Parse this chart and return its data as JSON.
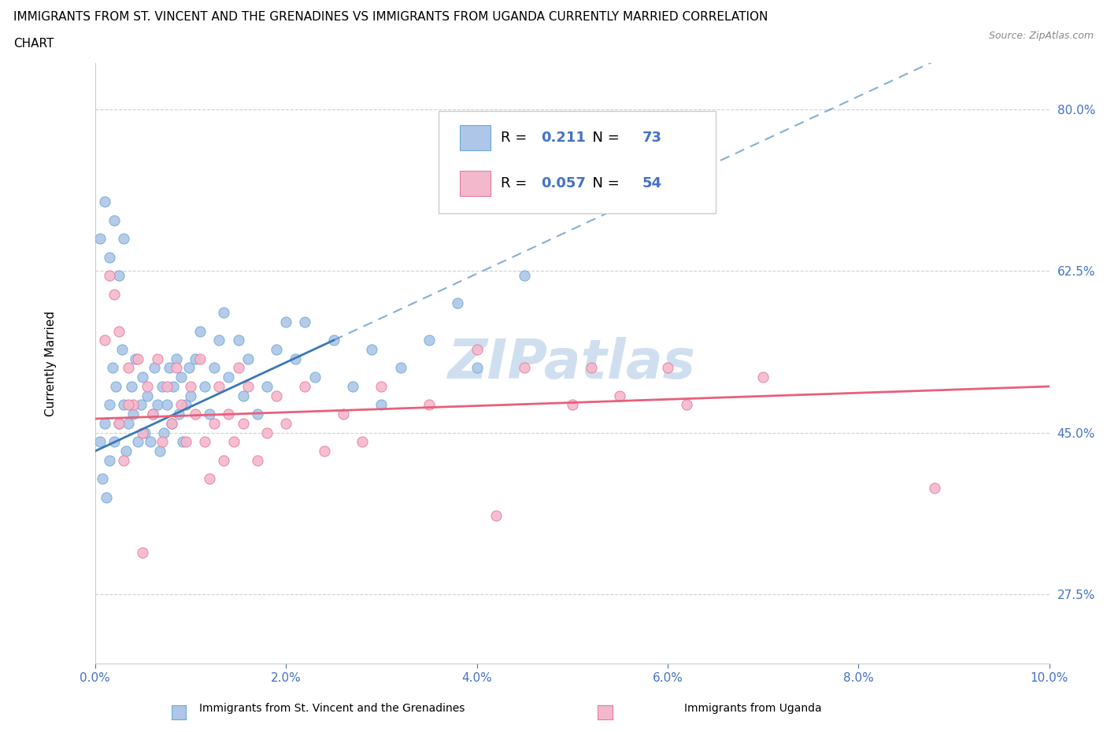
{
  "title_line1": "IMMIGRANTS FROM ST. VINCENT AND THE GRENADINES VS IMMIGRANTS FROM UGANDA CURRENTLY MARRIED CORRELATION",
  "title_line2": "CHART",
  "source": "Source: ZipAtlas.com",
  "xlabel_vals": [
    0.0,
    2.0,
    4.0,
    6.0,
    8.0,
    10.0
  ],
  "ylabel_vals": [
    27.5,
    45.0,
    62.5,
    80.0
  ],
  "ylabel_label": "Currently Married",
  "xlabel_label_blue": "Immigrants from St. Vincent and the Grenadines",
  "xlabel_label_pink": "Immigrants from Uganda",
  "xmin": 0.0,
  "xmax": 10.0,
  "ymin": 20.0,
  "ymax": 85.0,
  "blue_color": "#aec6e8",
  "pink_color": "#f4b8cc",
  "blue_edge_color": "#6aaad4",
  "pink_edge_color": "#e8799a",
  "blue_line_color": "#3a78b5",
  "pink_line_color": "#e8607a",
  "R_blue": 0.211,
  "N_blue": 73,
  "R_pink": 0.057,
  "N_pink": 54,
  "legend_color": "#4472c4",
  "watermark": "ZIPatlas",
  "watermark_color": "#d0dff0",
  "blue_solid_x_end": 2.5,
  "blue_line_y0": 43.0,
  "blue_line_slope": 4.8,
  "pink_line_y0": 46.5,
  "pink_line_slope": 0.35,
  "blue_scatter_x": [
    0.05,
    0.08,
    0.1,
    0.12,
    0.15,
    0.15,
    0.18,
    0.2,
    0.22,
    0.25,
    0.28,
    0.3,
    0.32,
    0.35,
    0.38,
    0.4,
    0.42,
    0.45,
    0.48,
    0.5,
    0.52,
    0.55,
    0.58,
    0.6,
    0.62,
    0.65,
    0.68,
    0.7,
    0.72,
    0.75,
    0.78,
    0.8,
    0.82,
    0.85,
    0.88,
    0.9,
    0.92,
    0.95,
    0.98,
    1.0,
    1.05,
    1.1,
    1.15,
    1.2,
    1.25,
    1.3,
    1.35,
    1.4,
    1.5,
    1.55,
    1.6,
    1.7,
    1.8,
    1.9,
    2.0,
    2.1,
    2.2,
    2.3,
    2.5,
    2.7,
    2.9,
    3.0,
    3.2,
    3.5,
    3.8,
    4.0,
    4.5,
    0.05,
    0.1,
    0.15,
    0.2,
    0.25,
    0.3
  ],
  "blue_scatter_y": [
    44.0,
    40.0,
    46.0,
    38.0,
    42.0,
    48.0,
    52.0,
    44.0,
    50.0,
    46.0,
    54.0,
    48.0,
    43.0,
    46.0,
    50.0,
    47.0,
    53.0,
    44.0,
    48.0,
    51.0,
    45.0,
    49.0,
    44.0,
    47.0,
    52.0,
    48.0,
    43.0,
    50.0,
    45.0,
    48.0,
    52.0,
    46.0,
    50.0,
    53.0,
    47.0,
    51.0,
    44.0,
    48.0,
    52.0,
    49.0,
    53.0,
    56.0,
    50.0,
    47.0,
    52.0,
    55.0,
    58.0,
    51.0,
    55.0,
    49.0,
    53.0,
    47.0,
    50.0,
    54.0,
    57.0,
    53.0,
    57.0,
    51.0,
    55.0,
    50.0,
    54.0,
    48.0,
    52.0,
    55.0,
    59.0,
    52.0,
    62.0,
    66.0,
    70.0,
    64.0,
    68.0,
    62.0,
    66.0
  ],
  "pink_scatter_x": [
    0.1,
    0.2,
    0.25,
    0.3,
    0.35,
    0.4,
    0.45,
    0.5,
    0.55,
    0.6,
    0.65,
    0.7,
    0.75,
    0.8,
    0.85,
    0.9,
    0.95,
    1.0,
    1.05,
    1.1,
    1.15,
    1.2,
    1.25,
    1.3,
    1.35,
    1.4,
    1.45,
    1.5,
    1.55,
    1.6,
    1.7,
    1.8,
    1.9,
    2.0,
    2.2,
    2.4,
    2.6,
    2.8,
    3.0,
    3.5,
    4.0,
    4.2,
    4.5,
    5.0,
    5.2,
    5.5,
    6.0,
    6.2,
    7.0,
    8.8,
    0.15,
    0.25,
    0.35,
    0.5
  ],
  "pink_scatter_y": [
    55.0,
    60.0,
    46.0,
    42.0,
    52.0,
    48.0,
    53.0,
    45.0,
    50.0,
    47.0,
    53.0,
    44.0,
    50.0,
    46.0,
    52.0,
    48.0,
    44.0,
    50.0,
    47.0,
    53.0,
    44.0,
    40.0,
    46.0,
    50.0,
    42.0,
    47.0,
    44.0,
    52.0,
    46.0,
    50.0,
    42.0,
    45.0,
    49.0,
    46.0,
    50.0,
    43.0,
    47.0,
    44.0,
    50.0,
    48.0,
    54.0,
    36.0,
    52.0,
    48.0,
    52.0,
    49.0,
    52.0,
    48.0,
    51.0,
    39.0,
    62.0,
    56.0,
    48.0,
    32.0
  ]
}
